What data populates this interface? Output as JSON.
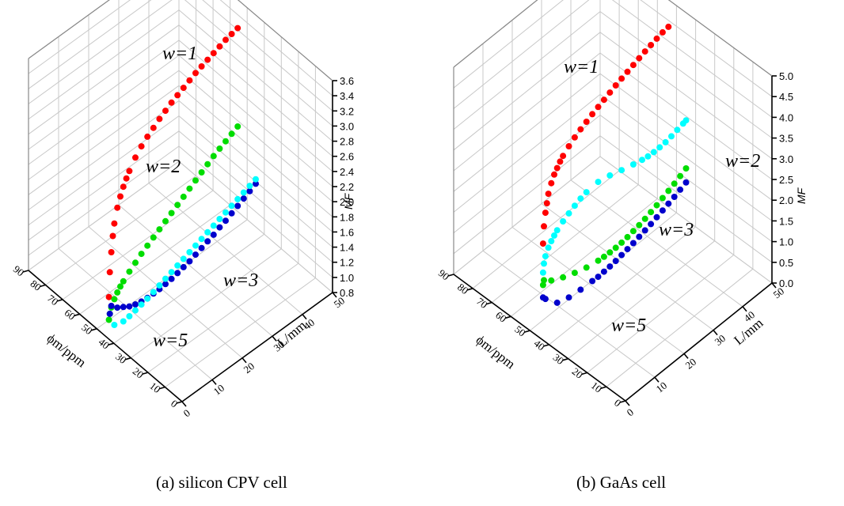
{
  "figure": {
    "captions": [
      "(a) silicon CPV cell",
      "(b) GaAs cell"
    ]
  },
  "chart_data": [
    {
      "type": "scatter",
      "panel": "(a) silicon CPV cell",
      "xlabel": "L/mm",
      "ylabel": "ϕm/ppm",
      "zlabel": "MF",
      "xlim": [
        0,
        50
      ],
      "ylim": [
        0,
        90
      ],
      "zlim": [
        0.8,
        3.6
      ],
      "x_ticks": [
        "0",
        "10",
        "20",
        "30",
        "40",
        "50"
      ],
      "y_ticks": [
        "0",
        "10",
        "20",
        "30",
        "40",
        "50",
        "60",
        "70",
        "80",
        "90"
      ],
      "z_ticks": [
        "0.8",
        "1.0",
        "1.2",
        "1.4",
        "1.6",
        "1.8",
        "2.0",
        "2.2",
        "2.4",
        "2.6",
        "2.8",
        "3.0",
        "3.2",
        "3.4",
        "3.6"
      ],
      "grid": true,
      "series": [
        {
          "name": "w=1",
          "color": "#ff0000",
          "points": [
            [
              1.2,
              1.28
            ],
            [
              1.5,
              1.6
            ],
            [
              2,
              1.85
            ],
            [
              2.5,
              2.05
            ],
            [
              3,
              2.2
            ],
            [
              4,
              2.38
            ],
            [
              5,
              2.5
            ],
            [
              6,
              2.6
            ],
            [
              7,
              2.68
            ],
            [
              8,
              2.75
            ],
            [
              10,
              2.87
            ],
            [
              12,
              2.96
            ],
            [
              14,
              3.03
            ],
            [
              16,
              3.09
            ],
            [
              18,
              3.15
            ],
            [
              20,
              3.2
            ],
            [
              22,
              3.25
            ],
            [
              24,
              3.29
            ],
            [
              26,
              3.33
            ],
            [
              28,
              3.37
            ],
            [
              30,
              3.41
            ],
            [
              32,
              3.44
            ],
            [
              34,
              3.47
            ],
            [
              36,
              3.5
            ],
            [
              38,
              3.53
            ],
            [
              40,
              3.56
            ],
            [
              42,
              3.58
            ],
            [
              44,
              3.6
            ]
          ]
        },
        {
          "name": "w=2",
          "color": "#00dd00",
          "points": [
            [
              1.2,
              0.98
            ],
            [
              1.5,
              1.05
            ],
            [
              2,
              1.12
            ],
            [
              3,
              1.2
            ],
            [
              4,
              1.26
            ],
            [
              5,
              1.31
            ],
            [
              6,
              1.35
            ],
            [
              8,
              1.42
            ],
            [
              10,
              1.48
            ],
            [
              12,
              1.54
            ],
            [
              14,
              1.59
            ],
            [
              16,
              1.64
            ],
            [
              18,
              1.69
            ],
            [
              20,
              1.74
            ],
            [
              22,
              1.79
            ],
            [
              24,
              1.84
            ],
            [
              26,
              1.89
            ],
            [
              28,
              1.94
            ],
            [
              30,
              1.99
            ],
            [
              32,
              2.04
            ],
            [
              34,
              2.09
            ],
            [
              36,
              2.14
            ],
            [
              38,
              2.18
            ],
            [
              40,
              2.22
            ],
            [
              42,
              2.26
            ],
            [
              44,
              2.3
            ]
          ]
        },
        {
          "name": "w=3",
          "color": "#0000cc",
          "points": [
            [
              1.5,
              1.05
            ],
            [
              2,
              1.14
            ],
            [
              4,
              1.06
            ],
            [
              6,
              1.01
            ],
            [
              8,
              0.96
            ],
            [
              10,
              0.93
            ],
            [
              12,
              0.91
            ],
            [
              14,
              0.9
            ],
            [
              16,
              0.9
            ],
            [
              18,
              0.9
            ],
            [
              20,
              0.91
            ],
            [
              22,
              0.92
            ],
            [
              24,
              0.94
            ],
            [
              26,
              0.96
            ],
            [
              28,
              0.98
            ],
            [
              30,
              1.01
            ],
            [
              32,
              1.04
            ],
            [
              34,
              1.07
            ],
            [
              36,
              1.1
            ],
            [
              38,
              1.14
            ],
            [
              40,
              1.17
            ],
            [
              42,
              1.21
            ],
            [
              44,
              1.25
            ],
            [
              46,
              1.29
            ],
            [
              48,
              1.33
            ],
            [
              50,
              1.37
            ]
          ]
        },
        {
          "name": "w=5",
          "color": "#00ffff",
          "points": [
            [
              3,
              0.86
            ],
            [
              6,
              0.82
            ],
            [
              8,
              0.83
            ],
            [
              10,
              0.85
            ],
            [
              12,
              0.87
            ],
            [
              14,
              0.89
            ],
            [
              16,
              0.92
            ],
            [
              18,
              0.95
            ],
            [
              20,
              0.98
            ],
            [
              22,
              1.01
            ],
            [
              24,
              1.04
            ],
            [
              26,
              1.07
            ],
            [
              28,
              1.1
            ],
            [
              30,
              1.13
            ],
            [
              32,
              1.16
            ],
            [
              34,
              1.19
            ],
            [
              36,
              1.22
            ],
            [
              38,
              1.25
            ],
            [
              40,
              1.28
            ],
            [
              42,
              1.31
            ],
            [
              44,
              1.34
            ],
            [
              46,
              1.37
            ],
            [
              48,
              1.4
            ],
            [
              50,
              1.43
            ]
          ]
        }
      ]
    },
    {
      "type": "scatter",
      "panel": "(b) GaAs cell",
      "xlabel": "L/mm",
      "ylabel": "ϕm/ppm",
      "zlabel": "MF",
      "xlim": [
        0,
        50
      ],
      "ylim": [
        0,
        90
      ],
      "zlim": [
        0.0,
        5.0
      ],
      "x_ticks": [
        "0",
        "10",
        "20",
        "30",
        "40",
        "50"
      ],
      "y_ticks": [
        "0",
        "10",
        "20",
        "30",
        "40",
        "50",
        "60",
        "70",
        "80",
        "90"
      ],
      "z_ticks": [
        "0.0",
        "0.5",
        "1.0",
        "1.5",
        "2.0",
        "2.5",
        "3.0",
        "3.5",
        "4.0",
        "4.5",
        "5.0"
      ],
      "grid": true,
      "series": [
        {
          "name": "w=1",
          "color": "#ff0000",
          "points": [
            [
              1.2,
              2.2
            ],
            [
              1.5,
              2.6
            ],
            [
              2,
              2.9
            ],
            [
              2.5,
              3.1
            ],
            [
              3,
              3.3
            ],
            [
              4,
              3.5
            ],
            [
              5,
              3.65
            ],
            [
              6,
              3.75
            ],
            [
              7,
              3.85
            ],
            [
              8,
              3.93
            ],
            [
              10,
              4.05
            ],
            [
              12,
              4.15
            ],
            [
              14,
              4.23
            ],
            [
              16,
              4.3
            ],
            [
              18,
              4.37
            ],
            [
              20,
              4.43
            ],
            [
              22,
              4.49
            ],
            [
              24,
              4.55
            ],
            [
              26,
              4.61
            ],
            [
              28,
              4.66
            ],
            [
              30,
              4.71
            ],
            [
              32,
              4.76
            ],
            [
              34,
              4.81
            ],
            [
              36,
              4.86
            ],
            [
              38,
              4.9
            ],
            [
              40,
              4.94
            ],
            [
              42,
              4.98
            ],
            [
              44,
              5.0
            ]
          ]
        },
        {
          "name": "w=2",
          "color": "#00ffff",
          "points": [
            [
              1.2,
              1.5
            ],
            [
              1.5,
              1.7
            ],
            [
              2,
              1.85
            ],
            [
              3,
              2.0
            ],
            [
              4,
              2.1
            ],
            [
              5,
              2.18
            ],
            [
              6,
              2.25
            ],
            [
              8,
              2.35
            ],
            [
              10,
              2.43
            ],
            [
              12,
              2.5
            ],
            [
              14,
              2.56
            ],
            [
              16,
              2.6
            ],
            [
              20,
              2.62
            ],
            [
              24,
              2.55
            ],
            [
              28,
              2.45
            ],
            [
              32,
              2.36
            ],
            [
              35,
              2.3
            ],
            [
              37,
              2.27
            ],
            [
              39,
              2.26
            ],
            [
              41,
              2.26
            ],
            [
              43,
              2.27
            ],
            [
              45,
              2.3
            ],
            [
              47,
              2.34
            ],
            [
              49,
              2.38
            ],
            [
              50,
              2.4
            ]
          ]
        },
        {
          "name": "w=3",
          "color": "#00dd00",
          "points": [
            [
              1.2,
              1.2
            ],
            [
              1.5,
              1.3
            ],
            [
              4,
              1.15
            ],
            [
              8,
              1.0
            ],
            [
              12,
              0.88
            ],
            [
              16,
              0.78
            ],
            [
              20,
              0.72
            ],
            [
              22,
              0.7
            ],
            [
              24,
              0.69
            ],
            [
              26,
              0.69
            ],
            [
              28,
              0.7
            ],
            [
              30,
              0.72
            ],
            [
              32,
              0.75
            ],
            [
              34,
              0.78
            ],
            [
              36,
              0.82
            ],
            [
              38,
              0.87
            ],
            [
              40,
              0.92
            ],
            [
              42,
              0.98
            ],
            [
              44,
              1.04
            ],
            [
              46,
              1.1
            ],
            [
              48,
              1.17
            ],
            [
              50,
              1.24
            ]
          ]
        },
        {
          "name": "w=5",
          "color": "#0000cc",
          "points": [
            [
              1.2,
              0.9
            ],
            [
              2,
              0.82
            ],
            [
              6,
              0.5
            ],
            [
              10,
              0.4
            ],
            [
              14,
              0.36
            ],
            [
              18,
              0.34
            ],
            [
              20,
              0.33
            ],
            [
              22,
              0.34
            ],
            [
              24,
              0.35
            ],
            [
              26,
              0.37
            ],
            [
              28,
              0.4
            ],
            [
              30,
              0.43
            ],
            [
              32,
              0.46
            ],
            [
              34,
              0.5
            ],
            [
              36,
              0.54
            ],
            [
              38,
              0.58
            ],
            [
              40,
              0.63
            ],
            [
              42,
              0.68
            ],
            [
              44,
              0.73
            ],
            [
              46,
              0.78
            ],
            [
              48,
              0.84
            ],
            [
              50,
              0.9
            ]
          ]
        }
      ]
    }
  ]
}
